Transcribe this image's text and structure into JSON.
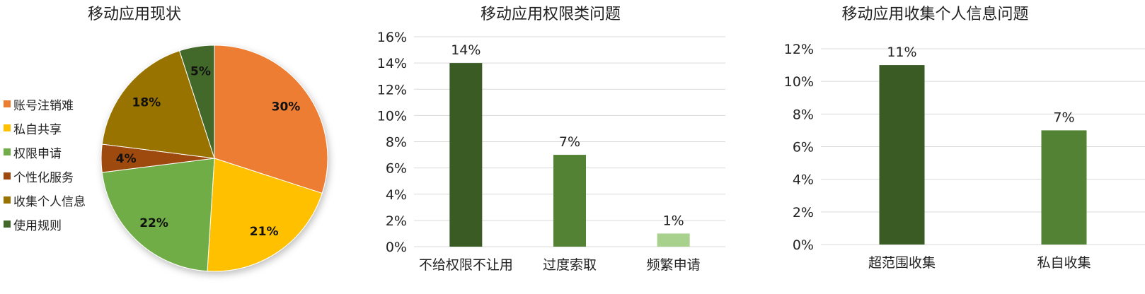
{
  "chart_data": [
    {
      "type": "pie",
      "title": "移动应用现状",
      "legend_position": "left",
      "categories": [
        "账号注销难",
        "私自共享",
        "权限申请",
        "个性化服务",
        "收集个人信息",
        "使用规则"
      ],
      "values": [
        30,
        21,
        22,
        4,
        18,
        5
      ],
      "labels": [
        "30%",
        "21%",
        "22%",
        "4%",
        "18%",
        "5%"
      ],
      "colors": [
        "#ED7D31",
        "#FFC000",
        "#70AD47",
        "#9E480E",
        "#997300",
        "#43682B"
      ]
    },
    {
      "type": "bar",
      "title": "移动应用权限类问题",
      "categories": [
        "不给权限不让用",
        "过度索取",
        "频繁申请"
      ],
      "values": [
        14,
        7,
        1
      ],
      "labels": [
        "14%",
        "7%",
        "1%"
      ],
      "colors": [
        "#3B5B24",
        "#548235",
        "#A9D18E"
      ],
      "ylim": [
        0,
        16
      ],
      "yticks": [
        "0%",
        "2%",
        "4%",
        "6%",
        "8%",
        "10%",
        "12%",
        "14%",
        "16%"
      ],
      "grid": true
    },
    {
      "type": "bar",
      "title": "移动应用收集个人信息问题",
      "categories": [
        "超范围收集",
        "私自收集"
      ],
      "values": [
        11,
        7
      ],
      "labels": [
        "11%",
        "7%"
      ],
      "colors": [
        "#3B5B24",
        "#548235"
      ],
      "ylim": [
        0,
        12
      ],
      "yticks": [
        "0%",
        "2%",
        "4%",
        "6%",
        "8%",
        "10%",
        "12%"
      ],
      "grid": true
    }
  ]
}
